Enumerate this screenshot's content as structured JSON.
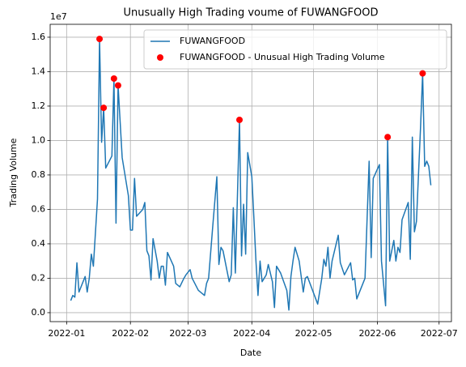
{
  "chart_data": {
    "type": "line",
    "title": "Unusually High Trading voume of FUWANGFOOD",
    "xlabel": "Date",
    "ylabel": "Trading Volume",
    "y_offset_label": "1e7",
    "grid": true,
    "legend": "upper right",
    "xlim": [
      "2021-12-24",
      "2022-07-07"
    ],
    "xticks": [
      {
        "value": "2022-01-01",
        "label": "2022-01"
      },
      {
        "value": "2022-02-01",
        "label": "2022-02"
      },
      {
        "value": "2022-03-01",
        "label": "2022-03"
      },
      {
        "value": "2022-04-01",
        "label": "2022-04"
      },
      {
        "value": "2022-05-01",
        "label": "2022-05"
      },
      {
        "value": "2022-06-01",
        "label": "2022-06"
      },
      {
        "value": "2022-07-01",
        "label": "2022-07"
      }
    ],
    "ylim": [
      -520000,
      16750000
    ],
    "yticks": [
      {
        "value": 0,
        "label": "0.0"
      },
      {
        "value": 2000000,
        "label": "0.2"
      },
      {
        "value": 4000000,
        "label": "0.4"
      },
      {
        "value": 6000000,
        "label": "0.6"
      },
      {
        "value": 8000000,
        "label": "0.8"
      },
      {
        "value": 10000000,
        "label": "1.0"
      },
      {
        "value": 12000000,
        "label": "1.2"
      },
      {
        "value": 14000000,
        "label": "1.4"
      },
      {
        "value": 16000000,
        "label": "1.6"
      }
    ],
    "series": [
      {
        "name": "FUWANGFOOD",
        "type": "line",
        "color": "#1f77b4",
        "x": [
          "2022-01-03",
          "2022-01-04",
          "2022-01-05",
          "2022-01-06",
          "2022-01-07",
          "2022-01-10",
          "2022-01-11",
          "2022-01-12",
          "2022-01-13",
          "2022-01-14",
          "2022-01-16",
          "2022-01-17",
          "2022-01-18",
          "2022-01-19",
          "2022-01-20",
          "2022-01-23",
          "2022-01-24",
          "2022-01-25",
          "2022-01-26",
          "2022-01-28",
          "2022-01-31",
          "2022-02-01",
          "2022-02-02",
          "2022-02-03",
          "2022-02-04",
          "2022-02-07",
          "2022-02-08",
          "2022-02-09",
          "2022-02-10",
          "2022-02-11",
          "2022-02-12",
          "2022-02-14",
          "2022-02-15",
          "2022-02-16",
          "2022-02-17",
          "2022-02-18",
          "2022-02-19",
          "2022-02-22",
          "2022-02-23",
          "2022-02-25",
          "2022-02-27",
          "2022-02-28",
          "2022-03-02",
          "2022-03-03",
          "2022-03-06",
          "2022-03-07",
          "2022-03-09",
          "2022-03-10",
          "2022-03-11",
          "2022-03-13",
          "2022-03-15",
          "2022-03-16",
          "2022-03-17",
          "2022-03-18",
          "2022-03-20",
          "2022-03-21",
          "2022-03-22",
          "2022-03-23",
          "2022-03-24",
          "2022-03-26",
          "2022-03-27",
          "2022-03-28",
          "2022-03-29",
          "2022-03-30",
          "2022-04-01",
          "2022-04-02",
          "2022-04-03",
          "2022-04-04",
          "2022-04-05",
          "2022-04-06",
          "2022-04-08",
          "2022-04-09",
          "2022-04-11",
          "2022-04-12",
          "2022-04-13",
          "2022-04-15",
          "2022-04-18",
          "2022-04-19",
          "2022-04-20",
          "2022-04-21",
          "2022-04-22",
          "2022-04-24",
          "2022-04-26",
          "2022-04-27",
          "2022-04-28",
          "2022-05-03",
          "2022-05-05",
          "2022-05-06",
          "2022-05-07",
          "2022-05-08",
          "2022-05-09",
          "2022-05-10",
          "2022-05-13",
          "2022-05-14",
          "2022-05-16",
          "2022-05-19",
          "2022-05-20",
          "2022-05-21",
          "2022-05-22",
          "2022-05-26",
          "2022-05-28",
          "2022-05-29",
          "2022-05-30",
          "2022-06-02",
          "2022-06-03",
          "2022-06-05",
          "2022-06-06",
          "2022-06-07",
          "2022-06-09",
          "2022-06-10",
          "2022-06-11",
          "2022-06-12",
          "2022-06-13",
          "2022-06-16",
          "2022-06-17",
          "2022-06-18",
          "2022-06-19",
          "2022-06-20",
          "2022-06-22",
          "2022-06-23",
          "2022-06-24",
          "2022-06-25",
          "2022-06-26",
          "2022-06-27"
        ],
        "values": [
          700000,
          1000000,
          900000,
          2900000,
          1200000,
          2100000,
          1200000,
          2000000,
          3400000,
          2700000,
          6600000,
          15900000,
          9900000,
          11900000,
          8400000,
          9100000,
          13600000,
          5200000,
          13200000,
          9000000,
          6800000,
          4800000,
          4800000,
          7800000,
          5600000,
          6000000,
          6400000,
          3600000,
          3300000,
          1900000,
          4300000,
          3000000,
          2000000,
          2700000,
          2700000,
          1600000,
          3500000,
          2700000,
          1700000,
          1500000,
          2000000,
          2200000,
          2500000,
          2000000,
          1300000,
          1200000,
          1000000,
          1700000,
          2000000,
          5000000,
          7900000,
          2800000,
          3800000,
          3600000,
          2400000,
          1800000,
          2200000,
          6100000,
          2300000,
          11200000,
          3300000,
          6300000,
          3400000,
          9300000,
          7900000,
          5500000,
          3000000,
          1000000,
          3000000,
          1800000,
          2200000,
          2800000,
          1800000,
          300000,
          2700000,
          2300000,
          1300000,
          150000,
          2100000,
          3000000,
          3800000,
          3000000,
          1200000,
          2000000,
          2100000,
          500000,
          2000000,
          3100000,
          2700000,
          3800000,
          2000000,
          3000000,
          4500000,
          2900000,
          2200000,
          2900000,
          1900000,
          2000000,
          800000,
          2000000,
          8800000,
          3200000,
          7800000,
          8600000,
          3000000,
          400000,
          10200000,
          3000000,
          4200000,
          3000000,
          3800000,
          3500000,
          5400000,
          6400000,
          3100000,
          10200000,
          4700000,
          5300000,
          10800000,
          13900000,
          8500000,
          8800000,
          8500000,
          7400000
        ]
      },
      {
        "name": "FUWANGFOOD - Unusual High Trading Volume",
        "type": "scatter",
        "color": "#ff0000",
        "x": [
          "2022-01-17",
          "2022-01-19",
          "2022-01-24",
          "2022-01-26",
          "2022-03-26",
          "2022-06-06",
          "2022-06-23"
        ],
        "values": [
          15900000,
          11900000,
          13600000,
          13200000,
          11200000,
          10200000,
          13900000
        ]
      }
    ]
  }
}
